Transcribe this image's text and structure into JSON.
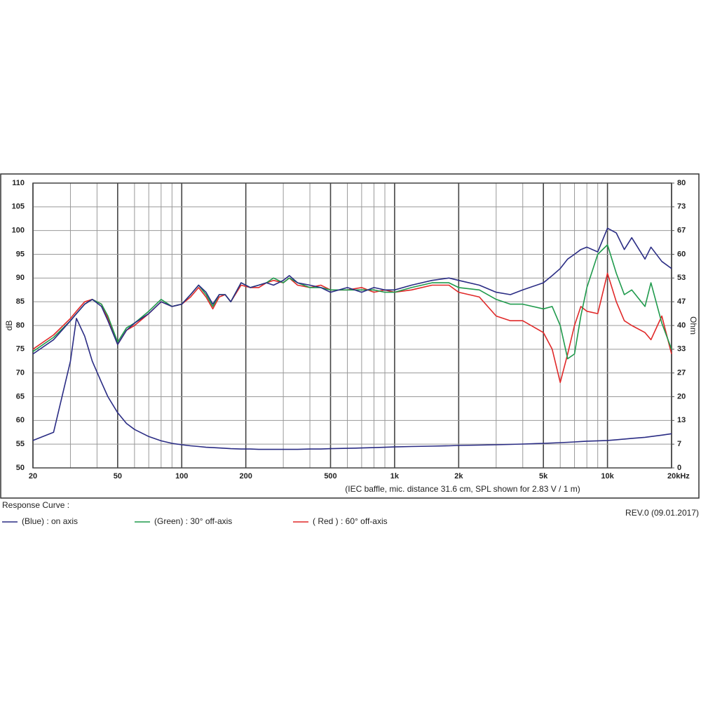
{
  "chart_data": {
    "type": "line",
    "x_label": "(IEC baffle, mic. distance 31.6 cm, SPL shown for 2.83 V / 1 m)",
    "y_label": "dB",
    "y2_label": "Ohm",
    "legend_title": "Response Curve :",
    "revision": "REV.0 (09.01.2017)",
    "x_log": true,
    "grid": true,
    "legend": "bottom",
    "xlim": [
      20,
      20000
    ],
    "xticks": [
      20,
      50,
      100,
      200,
      500,
      {
        "value": 1000,
        "label": "1k"
      },
      {
        "value": 2000,
        "label": "2k"
      },
      {
        "value": 5000,
        "label": "5k"
      },
      {
        "value": 10000,
        "label": "10k"
      },
      {
        "value": 20000,
        "label": "20kHz"
      }
    ],
    "x_minor_grid": [
      30,
      40,
      60,
      70,
      80,
      90,
      300,
      400,
      600,
      700,
      800,
      900,
      3000,
      4000,
      6000,
      7000,
      8000,
      9000
    ],
    "ylim": [
      50,
      110
    ],
    "yticks": [
      50,
      55,
      60,
      65,
      70,
      75,
      80,
      85,
      90,
      95,
      100,
      105,
      110
    ],
    "y2lim": [
      0,
      80
    ],
    "y2ticks": [
      0,
      {
        "value": 6.667,
        "label": "7"
      },
      {
        "value": 13.333,
        "label": "13"
      },
      20,
      {
        "value": 26.667,
        "label": "27"
      },
      {
        "value": 33.333,
        "label": "33"
      },
      40,
      {
        "value": 46.667,
        "label": "47"
      },
      {
        "value": 53.333,
        "label": "53"
      },
      60,
      {
        "value": 66.667,
        "label": "67"
      },
      {
        "value": 73.333,
        "label": "73"
      },
      80
    ],
    "x": [
      20,
      25,
      30,
      32,
      35,
      38,
      42,
      45,
      50,
      55,
      60,
      70,
      80,
      90,
      100,
      110,
      120,
      130,
      140,
      150,
      160,
      170,
      190,
      210,
      230,
      250,
      270,
      300,
      320,
      350,
      400,
      450,
      500,
      600,
      700,
      800,
      900,
      1000,
      1200,
      1500,
      1800,
      2000,
      2500,
      3000,
      3500,
      4000,
      5000,
      5500,
      6000,
      6500,
      7000,
      7500,
      8000,
      9000,
      10000,
      11000,
      12000,
      13000,
      15000,
      16000,
      18000,
      20000
    ],
    "series": [
      {
        "name": "(Blue)  : on axis",
        "color": "#2a2c84",
        "values": [
          74,
          77,
          81,
          82.5,
          84.5,
          85.5,
          84,
          81,
          76,
          79,
          80.5,
          82.5,
          85,
          84,
          84.5,
          86.5,
          88.5,
          87,
          84.5,
          86.5,
          86.5,
          85,
          89,
          88,
          88.5,
          89,
          88.5,
          89.5,
          90.5,
          89,
          88.5,
          88,
          87,
          88,
          87,
          88,
          87.5,
          87.5,
          88.5,
          89.5,
          90,
          89.5,
          88.5,
          87,
          86.5,
          87.5,
          89,
          90.5,
          92,
          94,
          95,
          96,
          96.5,
          95.5,
          100.5,
          99.5,
          96,
          98.5,
          94,
          96.5,
          93.5,
          92
        ]
      },
      {
        "name": "(Green) : 30° off-axis",
        "color": "#1f9a4c",
        "values": [
          74.5,
          77.5,
          81,
          82.5,
          84.5,
          85.5,
          84.5,
          82,
          76.5,
          79.5,
          80.5,
          83,
          85.5,
          84,
          84.5,
          86.5,
          88.5,
          86.5,
          84,
          86.5,
          86.5,
          85,
          89,
          88,
          88.5,
          89,
          90,
          89,
          90,
          89,
          88,
          88,
          87.5,
          87.5,
          87.5,
          87.5,
          87,
          87,
          88,
          89,
          89,
          88,
          87.5,
          85.5,
          84.5,
          84.5,
          83.5,
          84,
          80,
          73,
          74,
          82,
          88,
          95,
          97,
          91,
          86.5,
          87.5,
          84,
          89,
          80.5,
          75
        ]
      },
      {
        "name": "( Red ) : 60° off-axis",
        "color": "#e02828",
        "values": [
          75,
          78,
          81.5,
          83,
          85,
          85.5,
          84.5,
          81.5,
          76,
          79,
          80,
          82.5,
          85,
          84,
          84.5,
          86,
          88,
          86,
          83.5,
          86,
          86.5,
          85,
          88.5,
          88,
          88,
          89,
          89.5,
          89,
          90,
          88.5,
          88,
          88.5,
          87.5,
          87.5,
          88,
          87,
          87.5,
          87,
          87.5,
          88.5,
          88.5,
          87,
          86,
          82,
          81,
          81,
          78.5,
          75,
          68,
          74,
          80,
          84,
          83,
          82.5,
          91,
          85,
          81,
          80,
          78.5,
          77,
          82,
          74
        ]
      },
      {
        "color": "#2a2c84",
        "axis": "y2",
        "values": [
          7.7,
          10,
          30,
          42,
          37,
          30,
          24,
          20,
          15.5,
          12.5,
          10.8,
          8.8,
          7.6,
          6.9,
          6.5,
          6.2,
          6,
          5.8,
          5.7,
          5.6,
          5.5,
          5.4,
          5.3,
          5.3,
          5.2,
          5.2,
          5.2,
          5.2,
          5.2,
          5.2,
          5.3,
          5.3,
          5.4,
          5.5,
          5.6,
          5.7,
          5.8,
          5.9,
          6,
          6.1,
          6.2,
          6.3,
          6.4,
          6.5,
          6.6,
          6.7,
          6.9,
          7,
          7.1,
          7.2,
          7.3,
          7.4,
          7.5,
          7.6,
          7.7,
          7.9,
          8.1,
          8.3,
          8.6,
          8.8,
          9.2,
          9.6
        ]
      }
    ]
  }
}
